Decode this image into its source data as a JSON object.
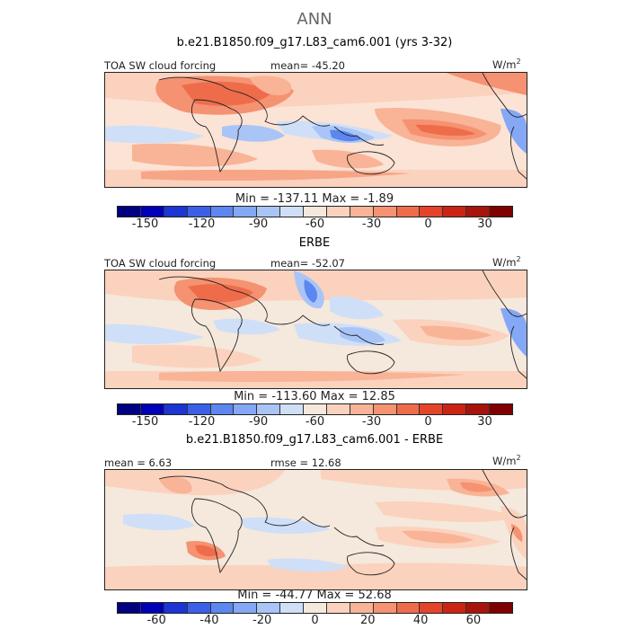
{
  "header": {
    "title": "ANN",
    "subtitle": "b.e21.B1850.f09_g17.L83_cam6.001 (yrs 3-32)"
  },
  "colors": {
    "main_palette": [
      "#000080",
      "#0000b8",
      "#1c35d4",
      "#3c5fe8",
      "#5c86f0",
      "#84a8f5",
      "#a9c5f7",
      "#cfdff8",
      "#f5e8dc",
      "#fbd2bd",
      "#f9b396",
      "#f59271",
      "#ef6c4b",
      "#e4442a",
      "#cc2414",
      "#a8140b",
      "#800000"
    ],
    "diff_palette": [
      "#000080",
      "#0000b8",
      "#1c35d4",
      "#3c5fe8",
      "#5c86f0",
      "#84a8f5",
      "#a9c5f7",
      "#cfdff8",
      "#f5e8dc",
      "#fbd2bd",
      "#f9b396",
      "#f59271",
      "#ef6c4b",
      "#e4442a",
      "#cc2414",
      "#a8140b",
      "#800000"
    ]
  },
  "chart_data": [
    {
      "type": "heatmap",
      "title": "TOA SW cloud forcing",
      "stat_label": "mean= -45.20",
      "units_base": "W/m",
      "units_exp": "2",
      "minmax": "Min = -137.11 Max =   -1.89",
      "colorbar_ticks": [
        "-150",
        "-120",
        "-90",
        "-60",
        "-30",
        "0",
        "30"
      ],
      "colorbar_range": [
        -165,
        45
      ]
    },
    {
      "type": "heatmap",
      "section_title": "ERBE",
      "title": "TOA SW cloud forcing",
      "stat_label": "mean= -52.07",
      "units_base": "W/m",
      "units_exp": "2",
      "minmax": "Min = -113.60 Max =  12.85",
      "colorbar_ticks": [
        "-150",
        "-120",
        "-90",
        "-60",
        "-30",
        "0",
        "30"
      ],
      "colorbar_range": [
        -165,
        45
      ]
    },
    {
      "type": "heatmap",
      "section_title": "b.e21.B1850.f09_g17.L83_cam6.001 - ERBE",
      "title": "mean =   6.63",
      "stat_label": "rmse =  12.68",
      "units_base": "W/m",
      "units_exp": "2",
      "minmax": "Min = -44.77 Max =  52.68",
      "colorbar_ticks": [
        "-60",
        "-40",
        "-20",
        "0",
        "20",
        "40",
        "60"
      ],
      "colorbar_range": [
        -75,
        75
      ]
    }
  ]
}
